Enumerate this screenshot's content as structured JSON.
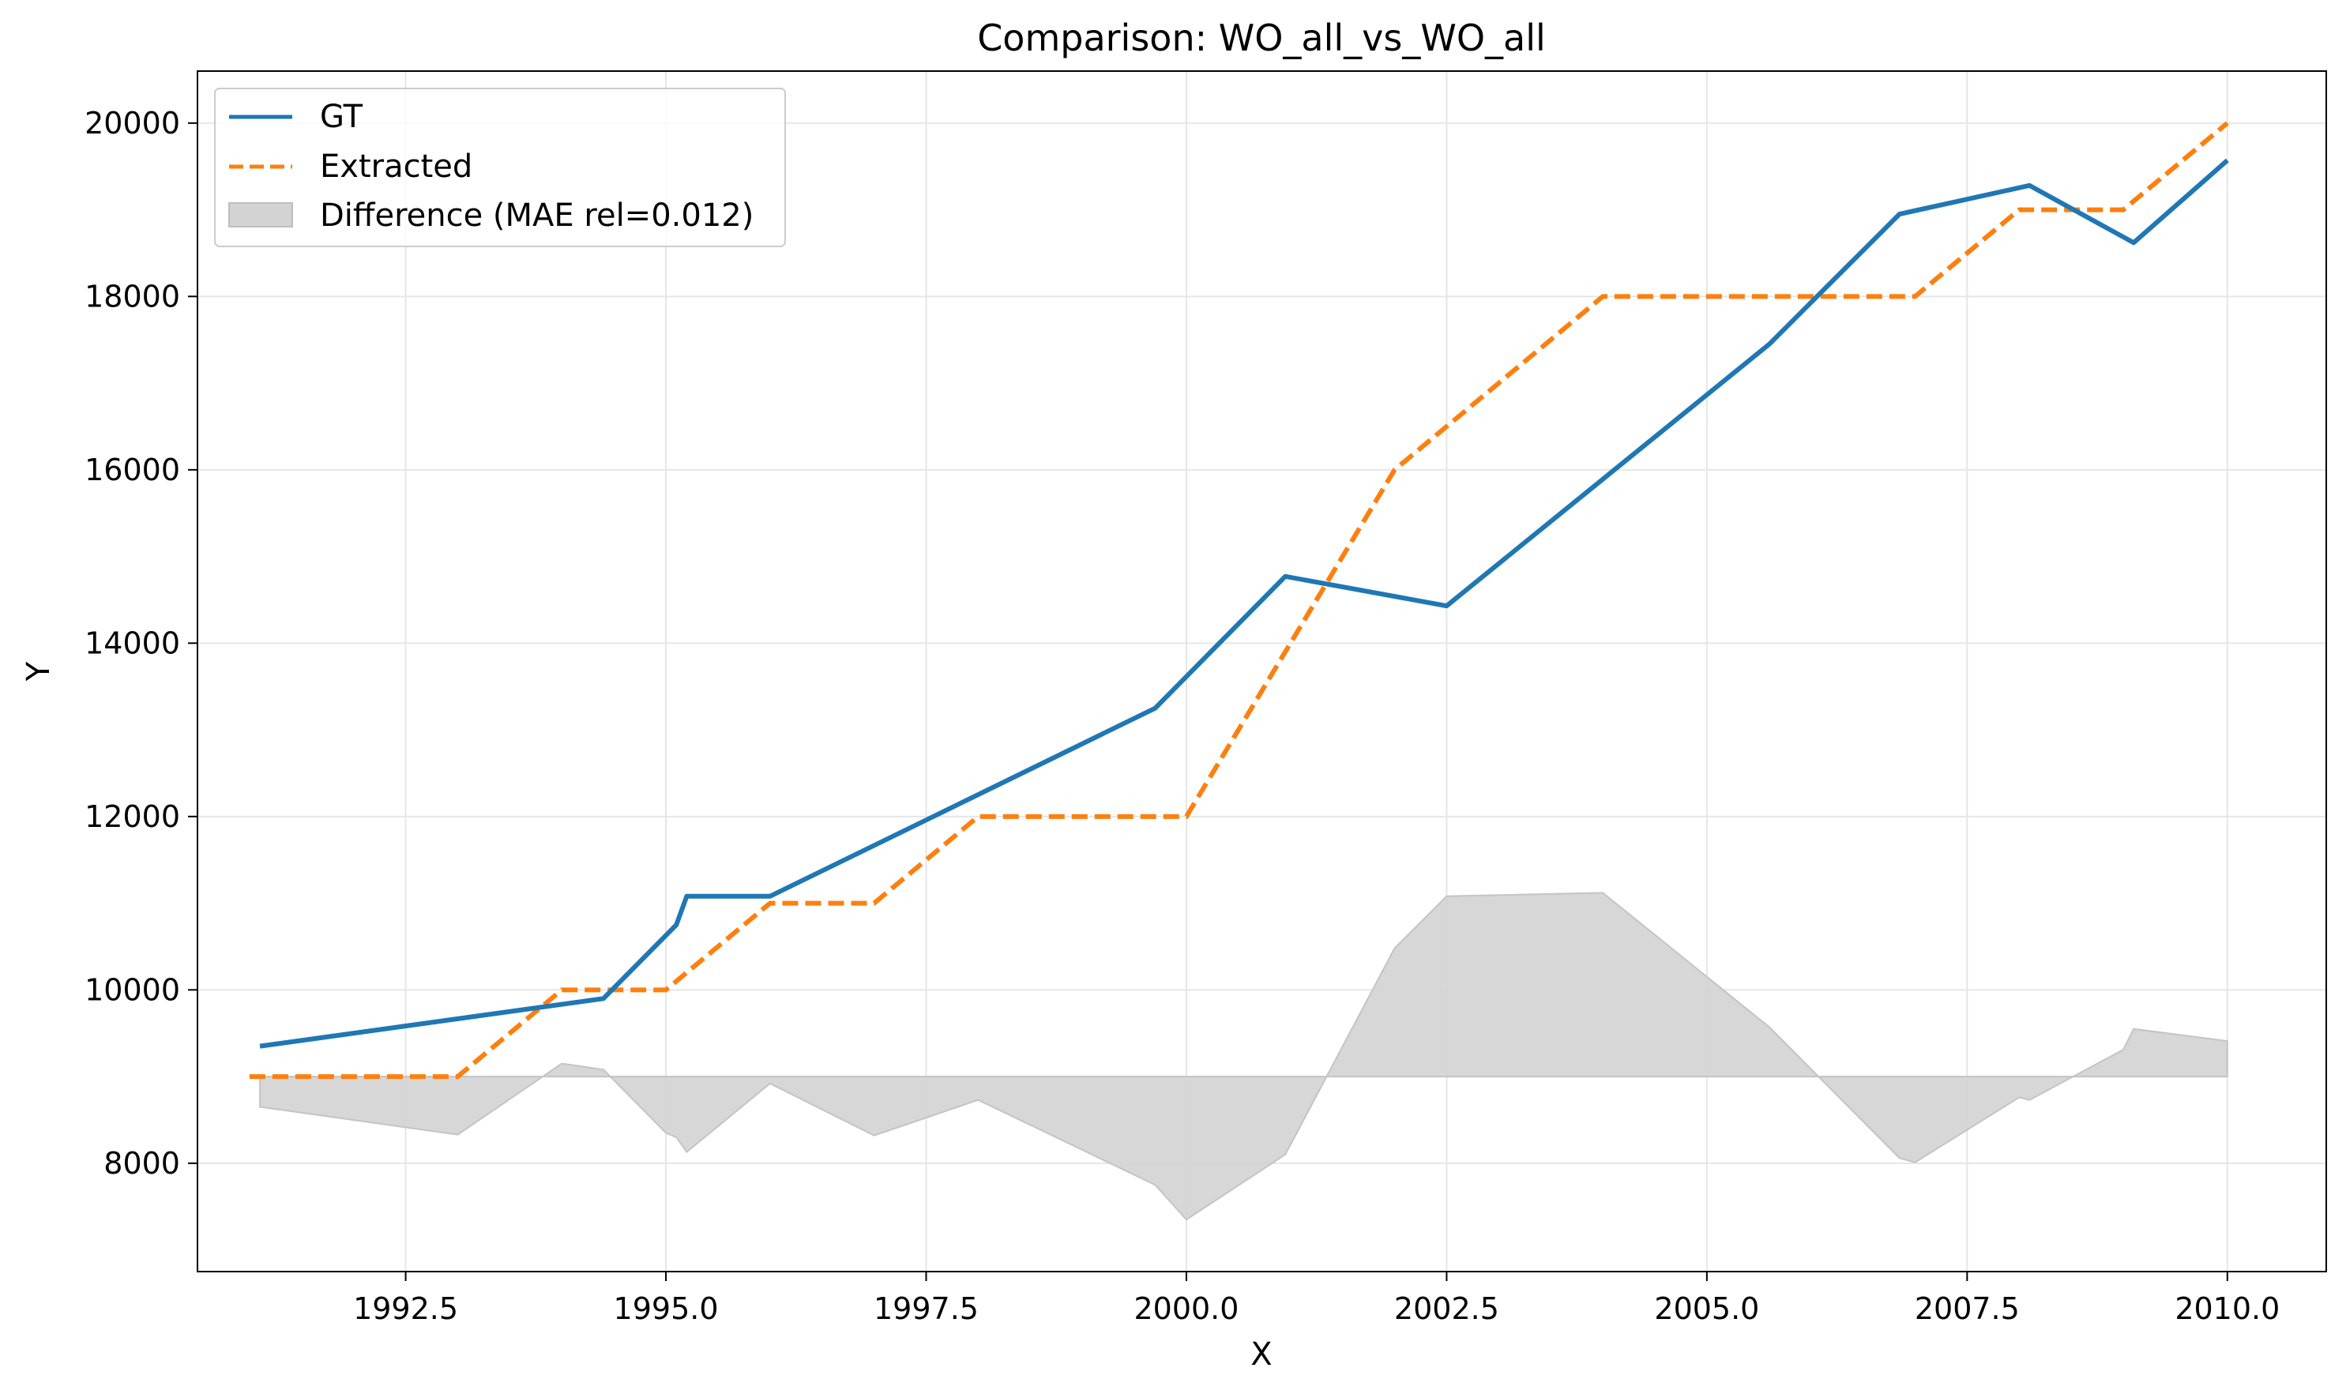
{
  "chart_data": {
    "type": "line",
    "title": "Comparison: WO_all_vs_WO_all",
    "xlabel": "X",
    "ylabel": "Y",
    "xlim": [
      1990.5,
      2010.95
    ],
    "ylim": [
      6750,
      20600
    ],
    "x_ticks": [
      1992.5,
      1995.0,
      1997.5,
      2000.0,
      2002.5,
      2005.0,
      2007.5,
      2010.0
    ],
    "x_tick_labels": [
      "1992.5",
      "1995.0",
      "1997.5",
      "2000.0",
      "2002.5",
      "2005.0",
      "2007.5",
      "2010.0"
    ],
    "y_ticks": [
      8000,
      10000,
      12000,
      14000,
      16000,
      18000,
      20000
    ],
    "y_tick_labels": [
      "8000",
      "10000",
      "12000",
      "14000",
      "16000",
      "18000",
      "20000"
    ],
    "grid": true,
    "legend_position": "top-left",
    "series": [
      {
        "name": "GT",
        "style": "solid",
        "color": "#1f77b4",
        "x": [
          1991.1,
          1994.4,
          1995.1,
          1995.2,
          1996.0,
          1999.7,
          2000.95,
          2002.5,
          2005.6,
          2006.85,
          2008.1,
          2009.1,
          2010.0
        ],
        "y": [
          9350,
          9900,
          10750,
          11080,
          11080,
          13250,
          14770,
          14430,
          17450,
          18950,
          19280,
          18620,
          19570
        ]
      },
      {
        "name": "Extracted",
        "style": "dashed",
        "color": "#ff7f0e",
        "x": [
          1991.0,
          1993.0,
          1994.0,
          1995.0,
          1996.0,
          1997.0,
          1998.0,
          2000.0,
          2002.0,
          2004.0,
          2007.0,
          2008.0,
          2009.0,
          2010.0
        ],
        "y": [
          9000,
          9000,
          10000,
          10000,
          11000,
          11000,
          12000,
          12000,
          16000,
          18000,
          18000,
          19000,
          19000,
          20000
        ]
      },
      {
        "name": "Difference (MAE rel=0.012)",
        "style": "area",
        "color": "#d3d3d3",
        "baseline": 9000,
        "x": [
          1991.1,
          1993.0,
          1994.0,
          1994.4,
          1995.0,
          1995.1,
          1995.2,
          1996.0,
          1997.0,
          1998.0,
          1999.7,
          2000.0,
          2000.95,
          2002.0,
          2002.5,
          2004.0,
          2005.6,
          2006.85,
          2007.0,
          2008.0,
          2008.1,
          2009.0,
          2009.1,
          2010.0
        ],
        "y": [
          8650,
          8330,
          9150,
          9080,
          8350,
          8300,
          8130,
          8920,
          8320,
          8730,
          7750,
          7350,
          8100,
          10480,
          11080,
          11120,
          9570,
          8060,
          8010,
          8760,
          8730,
          9310,
          9550,
          9410
        ]
      }
    ]
  }
}
